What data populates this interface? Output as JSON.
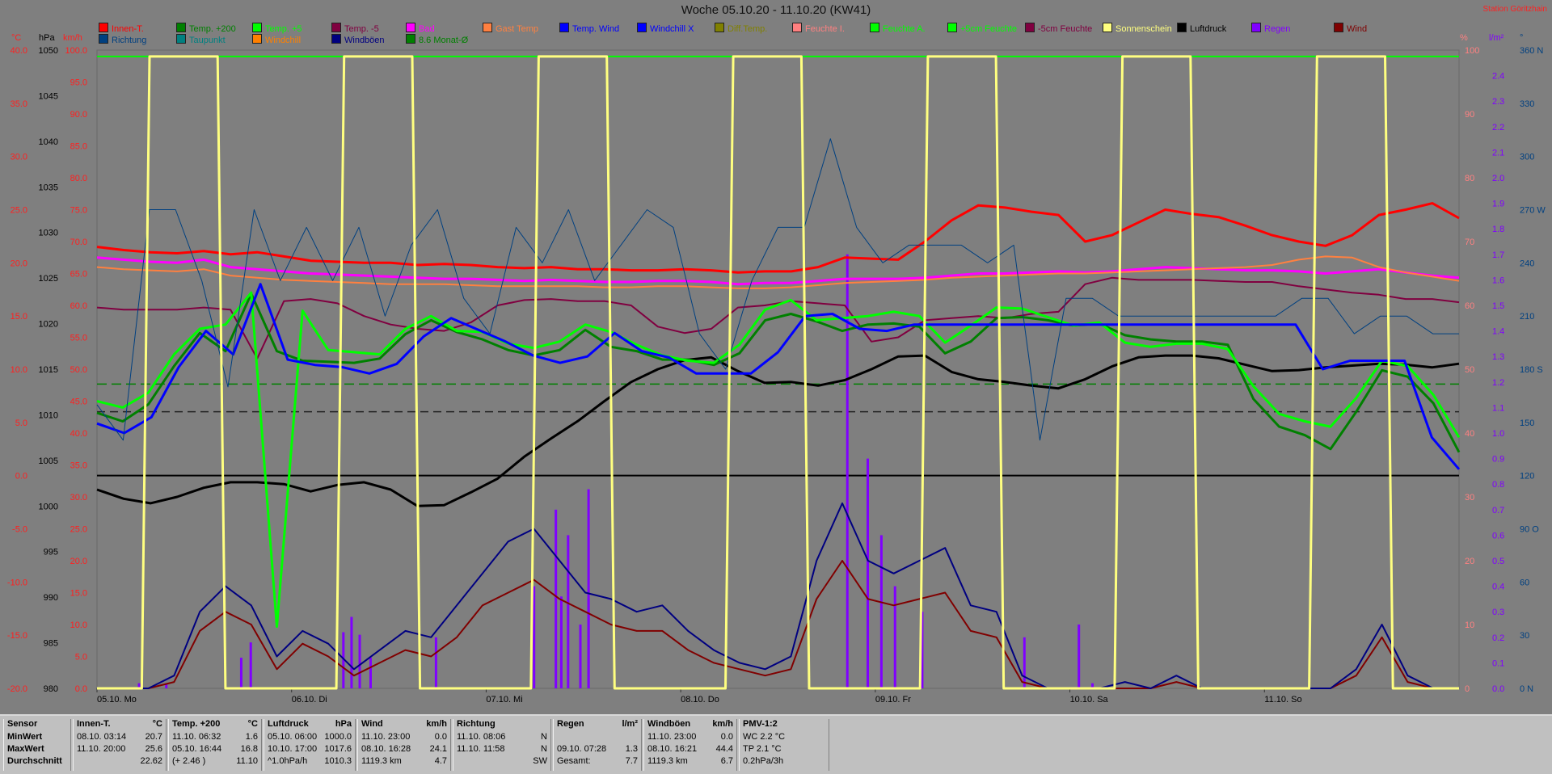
{
  "title": "Woche 05.10.20 - 11.10.20 (KW41)",
  "station": "Station Göritzhain",
  "left_units": [
    "°C",
    "hPa",
    "km/h"
  ],
  "right_units": [
    "%",
    "l/m²",
    "°"
  ],
  "legend": [
    {
      "label": "Innen-T.",
      "color": "#ff0000"
    },
    {
      "label": "Temp. +200",
      "color": "#008000"
    },
    {
      "label": "Temp. +5",
      "color": "#00ff00"
    },
    {
      "label": "Temp. -5",
      "color": "#800040"
    },
    {
      "label": "Bad",
      "color": "#ff00ff"
    },
    {
      "label": "Gast Temp",
      "color": "#ff8040"
    },
    {
      "label": "Temp. Wind",
      "color": "#0000ff"
    },
    {
      "label": "Windchill X",
      "color": "#0000ff"
    },
    {
      "label": "Diff.Temp.",
      "color": "#808000"
    },
    {
      "label": "Feuchte I.",
      "color": "#ff8080"
    },
    {
      "label": "Feuchte A.",
      "color": "#00ff00"
    },
    {
      "label": "+5cm Feuchte",
      "color": "#00ff00"
    },
    {
      "label": "-5cm Feuchte",
      "color": "#800040"
    },
    {
      "label": "Sonnenschein",
      "color": "#ffff80"
    },
    {
      "label": "Luftdruck",
      "color": "#000000"
    },
    {
      "label": "Regen",
      "color": "#8000ff"
    },
    {
      "label": "Wind",
      "color": "#800000"
    },
    {
      "label": "Richtung",
      "color": "#004080"
    },
    {
      "label": "Taupunkt",
      "color": "#008080"
    },
    {
      "label": "Windchill",
      "color": "#ff8000"
    },
    {
      "label": "Windböen",
      "color": "#000080"
    },
    {
      "label": "8.6 Monat-Ø",
      "color": "#008000"
    }
  ],
  "chart_data": {
    "type": "line",
    "x_labels": [
      "05.10. Mo",
      "06.10. Di",
      "07.10. Mi",
      "08.10. Do",
      "09.10. Fr",
      "10.10. Sa",
      "11.10. So"
    ],
    "axes": {
      "temperature_c": {
        "min": -20,
        "max": 40,
        "ticks": [
          "40.0",
          "35.0",
          "30.0",
          "25.0",
          "20.0",
          "15.0",
          "10.0",
          "5.0",
          "0.0",
          "-5.0",
          "-10.0",
          "-15.0",
          "-20.0"
        ]
      },
      "pressure_hpa": {
        "min": 980,
        "max": 1050,
        "ticks": [
          "1050",
          "1045",
          "1040",
          "1035",
          "1030",
          "1025",
          "1020",
          "1015",
          "1010",
          "1005",
          "1000",
          "995",
          "990",
          "985",
          "980"
        ]
      },
      "wind_kmh": {
        "min": 0,
        "max": 100,
        "ticks": [
          "100.0",
          "95.0",
          "90.0",
          "85.0",
          "80.0",
          "75.0",
          "70.0",
          "65.0",
          "60.0",
          "55.0",
          "50.0",
          "45.0",
          "40.0",
          "35.0",
          "30.0",
          "25.0",
          "20.0",
          "15.0",
          "10.0",
          "5.0",
          "0.0"
        ]
      },
      "humidity_pct": {
        "min": 0,
        "max": 100,
        "ticks": [
          "100",
          "90",
          "80",
          "70",
          "60",
          "50",
          "40",
          "30",
          "20",
          "10",
          "0"
        ]
      },
      "rain_l_m2": {
        "min": 0,
        "max": 2.5,
        "ticks": [
          "2.4",
          "2.3",
          "2.2",
          "2.1",
          "2.0",
          "1.9",
          "1.8",
          "1.7",
          "1.6",
          "1.5",
          "1.4",
          "1.3",
          "1.2",
          "1.1",
          "1.0",
          "0.9",
          "0.8",
          "0.7",
          "0.6",
          "0.5",
          "0.4",
          "0.3",
          "0.2",
          "0.1",
          "0.0"
        ]
      },
      "direction_deg": {
        "min": 0,
        "max": 360,
        "ticks": [
          "360 N",
          "330",
          "300",
          "270 W",
          "240",
          "210",
          "180 S",
          "150",
          "120",
          "90 O",
          "60",
          "30",
          "0 N"
        ]
      }
    },
    "series": [
      {
        "name": "Innen-T.",
        "color": "#ff0000",
        "axis": "temperature_c",
        "width": 3,
        "values": [
          21.5,
          21.2,
          21.0,
          20.9,
          21.1,
          20.8,
          21.0,
          20.6,
          20.2,
          20.1,
          20.0,
          20.0,
          19.8,
          19.9,
          19.8,
          19.6,
          19.5,
          19.6,
          19.4,
          19.4,
          19.3,
          19.3,
          19.4,
          19.3,
          19.1,
          19.2,
          19.2,
          19.6,
          20.5,
          20.4,
          20.3,
          22.0,
          24.0,
          25.4,
          25.2,
          24.8,
          24.5,
          22.0,
          22.6,
          23.8,
          25.0,
          24.6,
          24.3,
          23.5,
          22.6,
          22.0,
          21.6,
          22.6,
          24.5,
          25.0,
          25.6,
          24.2
        ]
      },
      {
        "name": "Bad",
        "color": "#ff00ff",
        "axis": "temperature_c",
        "width": 3,
        "values": [
          20.5,
          20.3,
          20.1,
          20.0,
          20.3,
          19.6,
          19.4,
          19.2,
          19.0,
          18.9,
          18.8,
          18.7,
          18.6,
          18.5,
          18.5,
          18.4,
          18.3,
          18.4,
          18.3,
          18.2,
          18.2,
          18.3,
          18.3,
          18.2,
          18.0,
          18.1,
          18.1,
          18.3,
          18.5,
          18.5,
          18.5,
          18.6,
          18.8,
          19.0,
          19.0,
          19.1,
          19.2,
          19.1,
          19.2,
          19.4,
          19.6,
          19.5,
          19.4,
          19.3,
          19.3,
          19.2,
          19.0,
          19.2,
          19.4,
          19.1,
          18.8,
          18.6
        ]
      },
      {
        "name": "Gast Temp",
        "color": "#ff8040",
        "axis": "temperature_c",
        "width": 2,
        "values": [
          19.6,
          19.4,
          19.3,
          19.2,
          19.4,
          18.8,
          18.6,
          18.4,
          18.3,
          18.2,
          18.1,
          18.0,
          18.0,
          18.0,
          17.9,
          17.8,
          17.8,
          17.8,
          17.8,
          17.7,
          17.7,
          17.8,
          17.8,
          17.7,
          17.6,
          17.6,
          17.7,
          17.9,
          18.1,
          18.2,
          18.3,
          18.4,
          18.6,
          18.7,
          18.8,
          18.9,
          19.0,
          19.0,
          19.1,
          19.2,
          19.3,
          19.4,
          19.5,
          19.6,
          19.8,
          20.3,
          20.6,
          20.5,
          19.6,
          19.1,
          18.7,
          18.3
        ]
      },
      {
        "name": "Temp. -5",
        "color": "#800040",
        "axis": "temperature_c",
        "width": 2,
        "values": [
          15.8,
          15.6,
          15.6,
          15.6,
          15.8,
          15.6,
          11.0,
          16.4,
          16.6,
          16.2,
          15.0,
          14.2,
          13.8,
          13.6,
          14.4,
          16.0,
          16.5,
          16.6,
          16.4,
          16.4,
          16.0,
          14.0,
          13.4,
          13.8,
          15.8,
          16.0,
          16.4,
          16.2,
          16.0,
          12.6,
          13.0,
          14.6,
          14.8,
          15.0,
          14.8,
          15.2,
          15.4,
          18.0,
          18.6,
          18.4,
          18.4,
          18.4,
          18.3,
          18.2,
          18.2,
          17.8,
          17.5,
          17.2,
          17.0,
          16.6,
          16.6,
          16.3
        ]
      },
      {
        "name": "Luftdruck",
        "color": "#000000",
        "axis": "pressure_hpa",
        "width": 3,
        "values": [
          1001.8,
          1000.8,
          1000.3,
          1001.0,
          1002.0,
          1002.6,
          1002.6,
          1002.4,
          1001.6,
          1002.3,
          1002.6,
          1001.8,
          1000.0,
          1000.1,
          1001.5,
          1003.0,
          1005.4,
          1007.4,
          1009.3,
          1011.5,
          1013.6,
          1015.0,
          1016.0,
          1016.3,
          1014.8,
          1013.5,
          1013.6,
          1013.2,
          1013.8,
          1015.0,
          1016.4,
          1016.5,
          1014.7,
          1013.9,
          1013.6,
          1013.2,
          1012.9,
          1013.9,
          1015.3,
          1016.3,
          1016.5,
          1016.5,
          1016.2,
          1015.5,
          1014.8,
          1014.9,
          1015.2,
          1015.4,
          1015.6,
          1015.5,
          1015.2,
          1015.6
        ]
      },
      {
        "name": "Temp. +200",
        "color": "#008000",
        "axis": "temperature_c",
        "width": 3,
        "values": [
          5.9,
          5.1,
          6.7,
          10.3,
          13.4,
          11.7,
          17.1,
          11.7,
          10.8,
          10.7,
          10.6,
          11.0,
          13.3,
          14.6,
          13.5,
          12.8,
          11.8,
          11.3,
          11.8,
          13.7,
          12.1,
          11.7,
          10.9,
          10.9,
          10.4,
          11.5,
          14.6,
          15.2,
          14.5,
          13.6,
          14.2,
          14.3,
          14.0,
          11.5,
          12.6,
          14.8,
          14.9,
          14.6,
          14.1,
          14.3,
          13.2,
          12.8,
          12.6,
          12.6,
          12.3,
          7.2,
          4.6,
          3.8,
          2.5,
          6.0,
          9.9,
          9.3,
          6.8,
          2.2
        ]
      },
      {
        "name": "Temp. +5",
        "color": "#00ff00",
        "axis": "temperature_c",
        "width": 3,
        "values": [
          7.0,
          6.4,
          7.8,
          11.4,
          13.8,
          14.2,
          17.2,
          -14.2,
          15.5,
          11.8,
          11.6,
          11.4,
          13.8,
          15.0,
          13.6,
          13.5,
          12.4,
          12.0,
          12.6,
          14.2,
          13.5,
          12.3,
          11.3,
          10.8,
          10.6,
          12.3,
          15.6,
          16.5,
          14.6,
          14.8,
          15.0,
          15.4,
          15.0,
          12.5,
          14.1,
          15.8,
          15.7,
          14.9,
          14.1,
          14.4,
          12.5,
          12.1,
          12.4,
          12.4,
          11.9,
          8.4,
          5.8,
          5.1,
          4.6,
          7.3,
          10.8,
          10.3,
          7.6,
          3.6
        ]
      },
      {
        "name": "Windchill",
        "color": "#0000ff",
        "axis": "temperature_c",
        "width": 3,
        "values": [
          4.9,
          4.0,
          5.5,
          10.2,
          13.6,
          11.4,
          18.0,
          10.9,
          10.4,
          10.2,
          9.6,
          10.5,
          13.1,
          14.8,
          13.7,
          12.6,
          11.3,
          10.6,
          11.2,
          13.4,
          11.7,
          11.1,
          9.6,
          9.6,
          9.6,
          11.6,
          15.0,
          15.2,
          13.8,
          13.6,
          14.2,
          14.2,
          14.2,
          14.2,
          14.2,
          14.2,
          14.2,
          14.2,
          14.2,
          14.2,
          14.2,
          14.2,
          14.2,
          14.2,
          14.2,
          10.0,
          10.8,
          10.8,
          10.8,
          3.6,
          0.6
        ]
      },
      {
        "name": "Wind",
        "color": "#800000",
        "axis": "wind_kmh",
        "width": 2,
        "values": [
          0,
          0,
          0,
          1,
          9,
          12,
          10,
          3,
          7,
          5,
          2,
          4,
          6,
          5,
          8,
          13,
          15,
          17,
          14,
          12,
          10,
          9,
          9,
          6,
          4,
          3,
          2,
          3,
          14,
          20,
          14,
          13,
          14,
          15,
          9,
          8,
          1,
          0,
          0,
          0,
          0,
          0,
          1,
          0,
          0,
          0,
          0,
          0,
          0,
          2,
          8,
          1,
          0,
          0
        ]
      },
      {
        "name": "Windböen",
        "color": "#000080",
        "axis": "wind_kmh",
        "width": 2,
        "values": [
          0,
          0,
          0,
          2,
          12,
          16,
          13,
          5,
          9,
          7,
          3,
          6,
          9,
          8,
          13,
          18,
          23,
          25,
          20,
          15,
          14,
          12,
          13,
          9,
          6,
          4,
          3,
          5,
          20,
          29,
          20,
          18,
          20,
          22,
          13,
          12,
          2,
          0,
          0,
          0,
          1,
          0,
          2,
          0,
          0,
          0,
          0,
          0,
          0,
          3,
          10,
          2,
          0,
          0
        ]
      },
      {
        "name": "Richtung",
        "color": "#004080",
        "axis": "direction_deg",
        "width": 1,
        "values": [
          160,
          140,
          270,
          270,
          230,
          170,
          270,
          230,
          260,
          230,
          260,
          210,
          250,
          270,
          220,
          200,
          260,
          240,
          270,
          230,
          250,
          270,
          260,
          200,
          180,
          230,
          260,
          260,
          310,
          260,
          240,
          250,
          250,
          250,
          240,
          250,
          140,
          220,
          220,
          210,
          210,
          210,
          210,
          210,
          210,
          210,
          220,
          220,
          200,
          210,
          210,
          200,
          200
        ]
      },
      {
        "name": "Sonnenschein",
        "color": "#ffff80",
        "axis": "humidity_pct",
        "width": 3,
        "values": [
          0,
          100,
          100,
          0,
          100,
          100,
          0,
          100,
          100,
          0,
          100,
          100,
          0,
          100,
          100,
          0,
          100,
          100,
          0,
          100,
          100,
          0
        ]
      }
    ],
    "rain_bars": [
      {
        "x": 0.03,
        "v": 0.02
      },
      {
        "x": 0.05,
        "v": 0.02
      },
      {
        "x": 0.105,
        "v": 0.12
      },
      {
        "x": 0.112,
        "v": 0.18
      },
      {
        "x": 0.18,
        "v": 0.22
      },
      {
        "x": 0.186,
        "v": 0.28
      },
      {
        "x": 0.192,
        "v": 0.21
      },
      {
        "x": 0.2,
        "v": 0.12
      },
      {
        "x": 0.248,
        "v": 0.2
      },
      {
        "x": 0.336,
        "v": 0.7
      },
      {
        "x": 0.345,
        "v": 0.6
      },
      {
        "x": 0.36,
        "v": 0.78
      },
      {
        "x": 0.354,
        "v": 0.25
      },
      {
        "x": 0.32,
        "v": 0.4
      },
      {
        "x": 0.34,
        "v": 0.36
      },
      {
        "x": 0.36,
        "v": 0.35
      },
      {
        "x": 0.55,
        "v": 1.7
      },
      {
        "x": 0.565,
        "v": 0.9
      },
      {
        "x": 0.575,
        "v": 0.6
      },
      {
        "x": 0.585,
        "v": 0.4
      },
      {
        "x": 0.605,
        "v": 0.3
      },
      {
        "x": 0.68,
        "v": 0.2
      },
      {
        "x": 0.72,
        "v": 0.25
      },
      {
        "x": 0.73,
        "v": 0.02
      }
    ]
  },
  "table": [
    {
      "header": "Sensor",
      "unit": "",
      "rows": [
        "MinWert",
        "MaxWert",
        "Durchschnitt"
      ],
      "times": [
        "",
        "",
        ""
      ],
      "values": [
        "",
        "",
        ""
      ]
    },
    {
      "header": "Innen-T.",
      "unit": "°C",
      "rows": [
        "08.10.  03:14",
        "11.10.  20:00",
        ""
      ],
      "values": [
        "20.7",
        "25.6",
        "22.62"
      ]
    },
    {
      "header": "Temp. +200",
      "unit": "°C",
      "rows": [
        "11.10.  06:32",
        "05.10.  16:44",
        "(+ 2.46 )"
      ],
      "values": [
        "1.6",
        "16.8",
        "11.10"
      ]
    },
    {
      "header": "Luftdruck",
      "unit": "hPa",
      "rows": [
        "05.10.  06:00",
        "10.10.  17:00",
        "^1.0hPa/h"
      ],
      "values": [
        "1000.0",
        "1017.6",
        "1010.3"
      ]
    },
    {
      "header": "Wind",
      "unit": "km/h",
      "rows": [
        "11.10.  23:00",
        "08.10.  16:28",
        "1119.3 km"
      ],
      "values": [
        "0.0",
        "24.1",
        "4.7"
      ]
    },
    {
      "header": "Richtung",
      "unit": "",
      "rows": [
        "11.10.  08:06",
        "11.10.  11:58",
        ""
      ],
      "values": [
        "N",
        "N",
        "SW"
      ]
    },
    {
      "header": "Regen",
      "unit": "l/m²",
      "rows": [
        "",
        "09.10.  07:28",
        "Gesamt:"
      ],
      "values": [
        "",
        "1.3",
        "7.7"
      ]
    },
    {
      "header": "Windböen",
      "unit": "km/h",
      "rows": [
        "11.10.  23:00",
        "08.10.  16:21",
        "1119.3 km"
      ],
      "values": [
        "0.0",
        "44.4",
        "6.7"
      ]
    },
    {
      "header": "PMV-1:2",
      "unit": "",
      "rows": [
        "WC 2.2 °C",
        "TP 2.1 °C",
        "0.2hPa/3h"
      ],
      "values": [
        "",
        "",
        ""
      ]
    }
  ]
}
